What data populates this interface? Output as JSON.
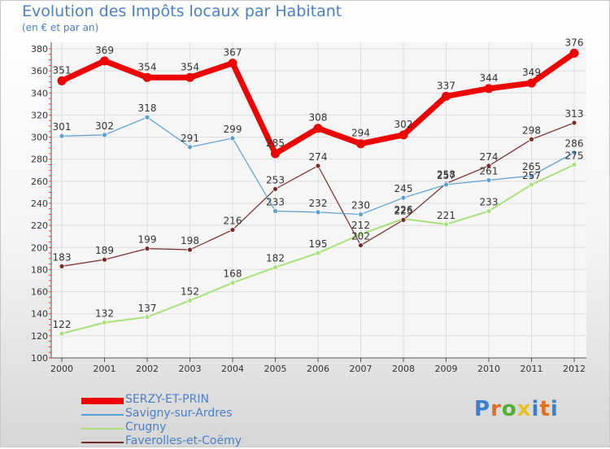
{
  "chart_data": {
    "type": "line",
    "title": "Evolution des Impôts locaux par Habitant",
    "subtitle": "(en € et par an)",
    "xlabel": "",
    "ylabel": "",
    "categories": [
      "2000",
      "2001",
      "2002",
      "2003",
      "2004",
      "2005",
      "2006",
      "2007",
      "2008",
      "2009",
      "2010",
      "2011",
      "2012"
    ],
    "ylim": [
      100,
      380
    ],
    "yticks": [
      100,
      120,
      140,
      160,
      180,
      200,
      220,
      240,
      260,
      280,
      300,
      320,
      340,
      360,
      380
    ],
    "grid": true,
    "legend_position": "bottom-left",
    "series": [
      {
        "name": "SERZY-ET-PRIN",
        "color": "#ee0000",
        "values": [
          351,
          369,
          354,
          354,
          367,
          285,
          308,
          294,
          302,
          337,
          344,
          349,
          376
        ]
      },
      {
        "name": "Savigny-sur-Ardres",
        "color": "#5a9fd4",
        "values": [
          301,
          302,
          318,
          291,
          299,
          233,
          232,
          230,
          245,
          257,
          261,
          265,
          286
        ]
      },
      {
        "name": "Crugny",
        "color": "#a8e07a",
        "values": [
          122,
          132,
          137,
          152,
          168,
          182,
          195,
          212,
          226,
          221,
          233,
          257,
          275
        ]
      },
      {
        "name": "Faverolles-et-Coëmy",
        "color": "#7a2a2a",
        "values": [
          183,
          189,
          199,
          198,
          216,
          253,
          274,
          202,
          225,
          258,
          274,
          298,
          313
        ]
      }
    ]
  },
  "logo": {
    "text": "Proxiti",
    "colors": [
      "#3a7fd0",
      "#e07020",
      "#50b030",
      "#e8c020",
      "#3a7fd0",
      "#e07020",
      "#3a7fd0"
    ]
  }
}
